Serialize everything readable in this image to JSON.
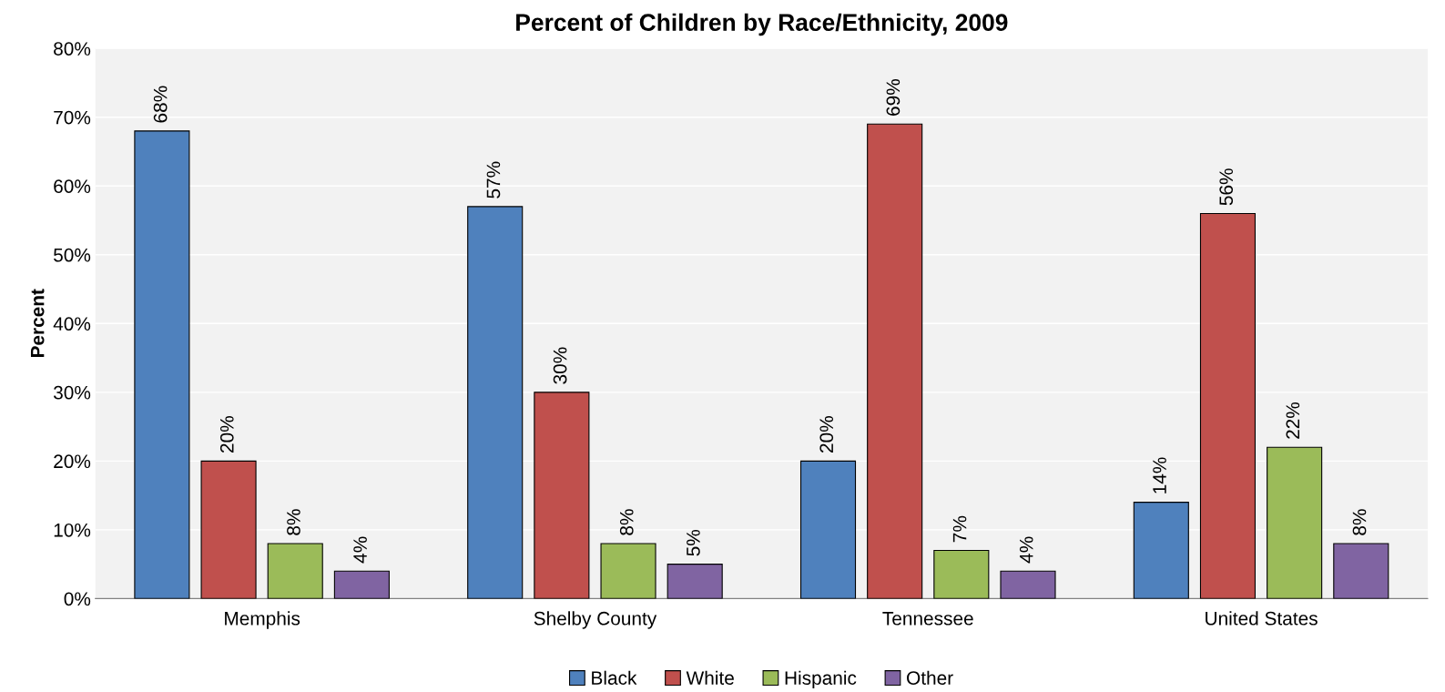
{
  "chart_data": {
    "type": "bar",
    "title": "Percent of Children by Race/Ethnicity, 2009",
    "ylabel": "Percent",
    "categories": [
      "Memphis",
      "Shelby County",
      "Tennessee",
      "United States"
    ],
    "series": [
      {
        "name": "Black",
        "color": "#4f81bd",
        "values": [
          68,
          57,
          20,
          14
        ],
        "value_labels": [
          "68%",
          "57%",
          "20%",
          "14%"
        ]
      },
      {
        "name": "White",
        "color": "#c0504d",
        "values": [
          20,
          30,
          69,
          56
        ],
        "value_labels": [
          "20%",
          "30%",
          "69%",
          "56%"
        ]
      },
      {
        "name": "Hispanic",
        "color": "#9bbb59",
        "values": [
          8,
          8,
          7,
          22
        ],
        "value_labels": [
          "8%",
          "8%",
          "7%",
          "22%"
        ]
      },
      {
        "name": "Other",
        "color": "#8064a2",
        "values": [
          4,
          5,
          4,
          8
        ],
        "value_labels": [
          "4%",
          "5%",
          "4%",
          "8%"
        ]
      }
    ],
    "ylim": [
      0,
      80
    ],
    "yticks": [
      {
        "value": 0,
        "label": "0%"
      },
      {
        "value": 10,
        "label": "10%"
      },
      {
        "value": 20,
        "label": "20%"
      },
      {
        "value": 30,
        "label": "30%"
      },
      {
        "value": 40,
        "label": "40%"
      },
      {
        "value": 50,
        "label": "50%"
      },
      {
        "value": 60,
        "label": "60%"
      },
      {
        "value": 70,
        "label": "70%"
      },
      {
        "value": 80,
        "label": "80%"
      }
    ],
    "grid": "y",
    "legend": "bottom"
  }
}
